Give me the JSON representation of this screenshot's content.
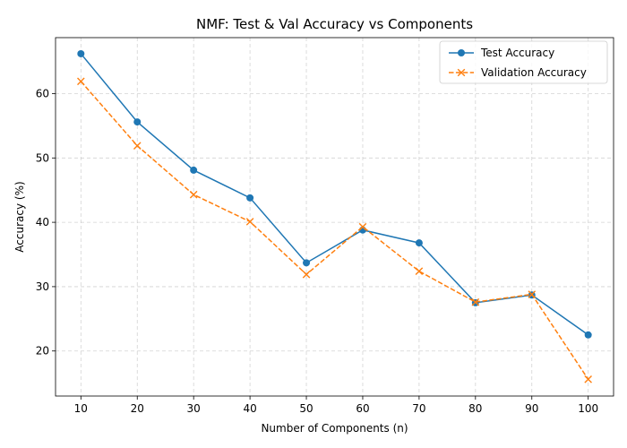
{
  "chart_data": {
    "type": "line",
    "title": "NMF: Test & Val Accuracy vs Components",
    "xlabel": "Number of Components (n)",
    "ylabel": "Accuracy (%)",
    "x": [
      10,
      20,
      30,
      40,
      50,
      60,
      70,
      80,
      90,
      100
    ],
    "xticks": [
      "10",
      "20",
      "30",
      "40",
      "50",
      "60",
      "70",
      "80",
      "90",
      "100"
    ],
    "yticks": [
      20,
      30,
      40,
      50,
      60
    ],
    "ylim": [
      13,
      68.7
    ],
    "grid": true,
    "legend_position": "top-right",
    "series": [
      {
        "name": "Test Accuracy",
        "color": "#1f77b4",
        "linestyle": "solid",
        "marker": "circle",
        "values": [
          66.2,
          55.6,
          48.1,
          43.8,
          33.7,
          38.8,
          36.8,
          27.5,
          28.7,
          22.5
        ]
      },
      {
        "name": "Validation Accuracy",
        "color": "#ff7f0e",
        "linestyle": "dashed",
        "marker": "x",
        "values": [
          61.9,
          51.9,
          44.3,
          40.1,
          31.9,
          39.3,
          32.4,
          27.6,
          28.8,
          15.6
        ]
      }
    ]
  }
}
